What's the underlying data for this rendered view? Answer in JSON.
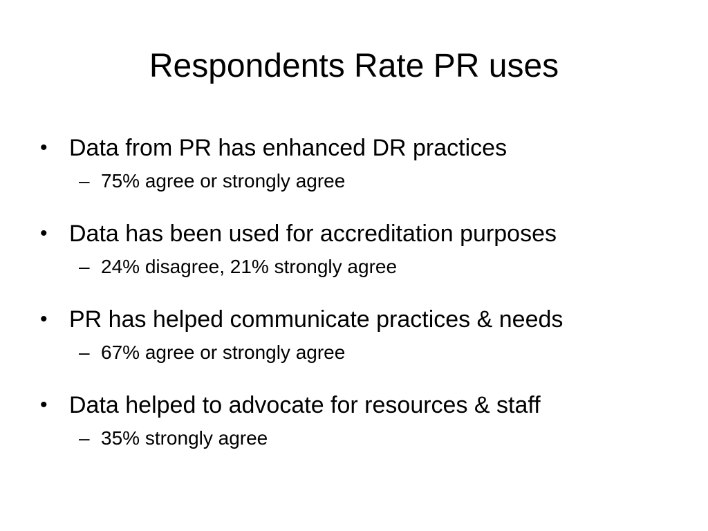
{
  "slide": {
    "title": "Respondents Rate PR uses",
    "bullet_glyph": "•",
    "dash_glyph": "–",
    "items": [
      {
        "text": "Data from PR has enhanced DR practices",
        "sub": "75% agree or strongly agree"
      },
      {
        "text": "Data has been used for accreditation purposes",
        "sub": "24% disagree, 21% strongly agree"
      },
      {
        "text": "PR has helped communicate practices & needs",
        "sub": "67% agree or strongly agree"
      },
      {
        "text": "Data helped to advocate for resources & staff",
        "sub": "35% strongly agree"
      }
    ]
  }
}
